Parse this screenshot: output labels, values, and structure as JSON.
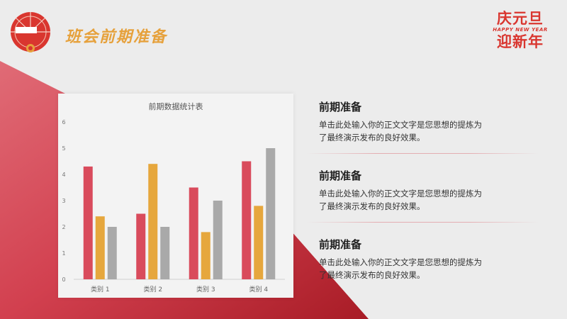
{
  "header": {
    "title": "班会前期准备"
  },
  "brand": {
    "line1": "庆元旦",
    "line2": "HAPPY NEW YEAR",
    "line3": "迎新年"
  },
  "colors": {
    "red": "#d94b5c",
    "orange": "#e6a73d",
    "gray": "#a9a9a9",
    "title_gold": "#e6a13c"
  },
  "chart_data": {
    "type": "bar",
    "title": "前期数据统计表",
    "categories": [
      "类别 1",
      "类别 2",
      "类别 3",
      "类别 4"
    ],
    "series": [
      {
        "values": [
          4.3,
          2.5,
          3.5,
          4.5
        ]
      },
      {
        "values": [
          2.4,
          4.4,
          1.8,
          2.8
        ]
      },
      {
        "values": [
          2.0,
          2.0,
          3.0,
          5.0
        ]
      }
    ],
    "ylim": [
      0,
      6
    ],
    "yticks": [
      "0",
      "1",
      "2",
      "3",
      "4",
      "5",
      "6"
    ],
    "grid": false
  },
  "items": [
    {
      "heading": "前期准备",
      "line1": "单击此处输入你的正文文字是您思想的提炼为",
      "line2": "了最终演示发布的良好效果。"
    },
    {
      "heading": "前期准备",
      "line1": "单击此处输入你的正文文字是您思想的提炼为",
      "line2": "了最终演示发布的良好效果。"
    },
    {
      "heading": "前期准备",
      "line1": "单击此处输入你的正文文字是您思想的提炼为",
      "line2": "了最终演示发布的良好效果。"
    }
  ]
}
